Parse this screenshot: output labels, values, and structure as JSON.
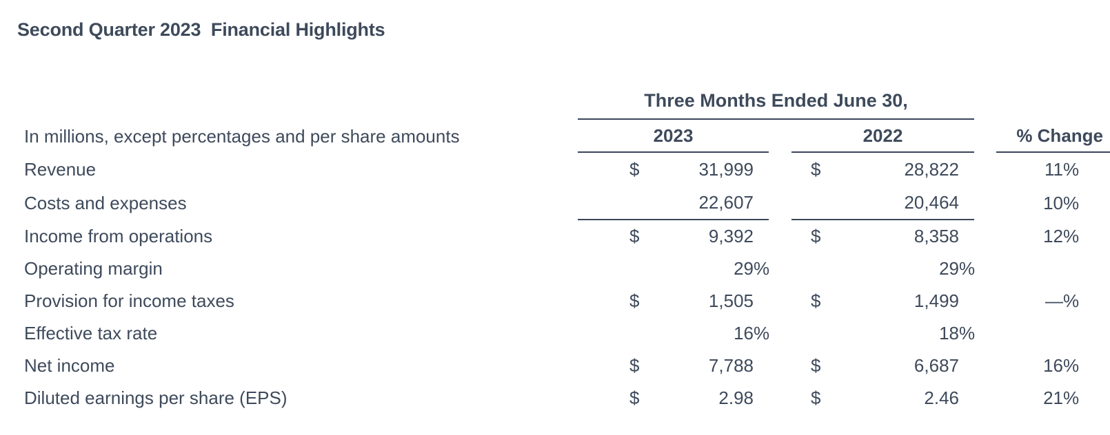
{
  "page_title": "Second Quarter 2023  Financial Highlights",
  "colors": {
    "text": "#3e4a5b",
    "rule": "#39455a",
    "background": "#ffffff"
  },
  "table": {
    "span_header": "Three Months Ended June 30,",
    "meta_label": "In millions, except percentages and per share amounts",
    "col_2023": "2023",
    "col_2022": "2022",
    "col_change": "% Change",
    "rows": [
      {
        "label": "Revenue",
        "c2023": {
          "cur": "$",
          "num": "31,999",
          "pct": ""
        },
        "c2022": {
          "cur": "$",
          "num": "28,822",
          "pct": ""
        },
        "chg": {
          "num": "11",
          "pct": "%"
        }
      },
      {
        "label": "Costs and expenses",
        "c2023": {
          "cur": "",
          "num": "22,607",
          "pct": ""
        },
        "c2022": {
          "cur": "",
          "num": "20,464",
          "pct": ""
        },
        "chg": {
          "num": "10",
          "pct": "%"
        }
      },
      {
        "label": "Income from operations",
        "c2023": {
          "cur": "$",
          "num": "9,392",
          "pct": ""
        },
        "c2022": {
          "cur": "$",
          "num": "8,358",
          "pct": ""
        },
        "chg": {
          "num": "12",
          "pct": "%"
        }
      },
      {
        "label": "Operating margin",
        "c2023": {
          "cur": "",
          "num": "29",
          "pct": "%"
        },
        "c2022": {
          "cur": "",
          "num": "29",
          "pct": "%"
        },
        "chg": {
          "num": "",
          "pct": ""
        }
      },
      {
        "label": "Provision for income taxes",
        "c2023": {
          "cur": "$",
          "num": "1,505",
          "pct": ""
        },
        "c2022": {
          "cur": "$",
          "num": "1,499",
          "pct": ""
        },
        "chg": {
          "num": "—",
          "pct": "%"
        }
      },
      {
        "label": "Effective tax rate",
        "c2023": {
          "cur": "",
          "num": "16",
          "pct": "%"
        },
        "c2022": {
          "cur": "",
          "num": "18",
          "pct": "%"
        },
        "chg": {
          "num": "",
          "pct": ""
        }
      },
      {
        "label": "Net income",
        "c2023": {
          "cur": "$",
          "num": "7,788",
          "pct": ""
        },
        "c2022": {
          "cur": "$",
          "num": "6,687",
          "pct": ""
        },
        "chg": {
          "num": "16",
          "pct": "%"
        }
      },
      {
        "label": "Diluted earnings per share (EPS)",
        "c2023": {
          "cur": "$",
          "num": "2.98",
          "pct": ""
        },
        "c2022": {
          "cur": "$",
          "num": "2.46",
          "pct": ""
        },
        "chg": {
          "num": "21",
          "pct": "%"
        }
      }
    ]
  }
}
